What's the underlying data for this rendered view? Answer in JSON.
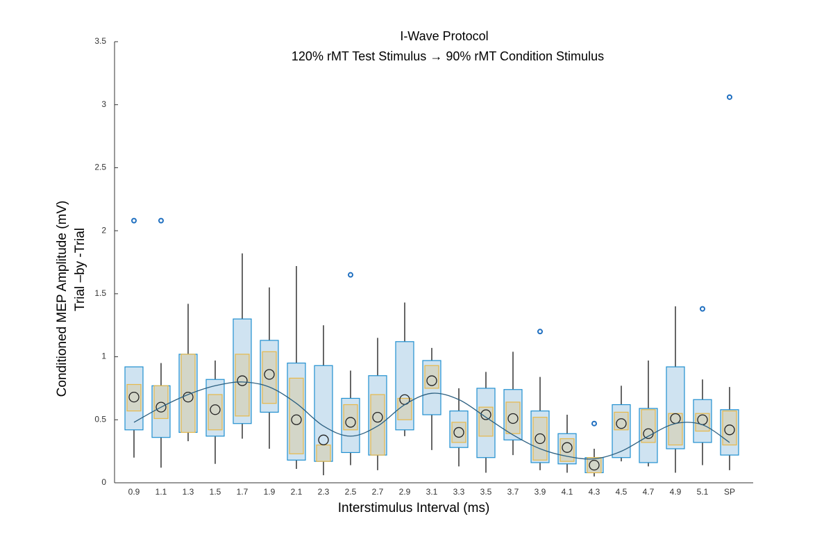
{
  "chart_data": {
    "type": "box",
    "title": [
      "I-Wave Protocol",
      "120% rMT Test Stimulus → 90% rMT Condition Stimulus"
    ],
    "y_label": [
      "Conditioned MEP Amplitude (mV)",
      "Trial –by -Trial"
    ],
    "x_label": "Interstimulus Interval (ms)",
    "categories": [
      "0.9",
      "1.1",
      "1.3",
      "1.5",
      "1.7",
      "1.9",
      "2.1",
      "2.3",
      "2.5",
      "2.7",
      "2.9",
      "3.1",
      "3.3",
      "3.5",
      "3.7",
      "3.9",
      "4.1",
      "4.3",
      "4.5",
      "4.7",
      "4.9",
      "5.1",
      "SP"
    ],
    "ylim": [
      0,
      3.5
    ],
    "yticks": [
      0,
      0.5,
      1,
      1.5,
      2,
      2.5,
      3,
      3.5
    ],
    "box_color": "#1f8fd0",
    "box_fill": "#cfe3f1",
    "inner_color": "#e6b84a",
    "inner_fill": "#d3d6c8",
    "whisker_color": "#333333",
    "mean_color": "#222222",
    "outlier_color": "#1f6fc0",
    "fit_color": "#2b5f80",
    "boxes": [
      {
        "q1": 0.42,
        "q3": 0.92,
        "inner_q1": 0.57,
        "inner_q3": 0.78,
        "whisker_low": 0.2,
        "whisker_high": 0.92,
        "mean": 0.68,
        "outliers": [
          2.08
        ]
      },
      {
        "q1": 0.36,
        "q3": 0.77,
        "inner_q1": 0.51,
        "inner_q3": 0.77,
        "whisker_low": 0.12,
        "whisker_high": 0.95,
        "mean": 0.6,
        "outliers": [
          2.08
        ]
      },
      {
        "q1": 0.4,
        "q3": 1.02,
        "inner_q1": 0.4,
        "inner_q3": 1.02,
        "whisker_low": 0.33,
        "whisker_high": 1.42,
        "mean": 0.68,
        "outliers": []
      },
      {
        "q1": 0.37,
        "q3": 0.82,
        "inner_q1": 0.42,
        "inner_q3": 0.7,
        "whisker_low": 0.15,
        "whisker_high": 0.97,
        "mean": 0.58,
        "outliers": []
      },
      {
        "q1": 0.47,
        "q3": 1.3,
        "inner_q1": 0.53,
        "inner_q3": 1.02,
        "whisker_low": 0.35,
        "whisker_high": 1.82,
        "mean": 0.81,
        "outliers": []
      },
      {
        "q1": 0.56,
        "q3": 1.13,
        "inner_q1": 0.63,
        "inner_q3": 1.04,
        "whisker_low": 0.27,
        "whisker_high": 1.55,
        "mean": 0.86,
        "outliers": []
      },
      {
        "q1": 0.18,
        "q3": 0.95,
        "inner_q1": 0.23,
        "inner_q3": 0.83,
        "whisker_low": 0.11,
        "whisker_high": 1.72,
        "mean": 0.5,
        "outliers": []
      },
      {
        "q1": 0.17,
        "q3": 0.93,
        "inner_q1": 0.17,
        "inner_q3": 0.3,
        "whisker_low": 0.06,
        "whisker_high": 1.25,
        "mean": 0.34,
        "outliers": []
      },
      {
        "q1": 0.24,
        "q3": 0.67,
        "inner_q1": 0.42,
        "inner_q3": 0.62,
        "whisker_low": 0.14,
        "whisker_high": 0.89,
        "mean": 0.48,
        "outliers": [
          1.65
        ]
      },
      {
        "q1": 0.22,
        "q3": 0.85,
        "inner_q1": 0.22,
        "inner_q3": 0.7,
        "whisker_low": 0.1,
        "whisker_high": 1.15,
        "mean": 0.52,
        "outliers": []
      },
      {
        "q1": 0.42,
        "q3": 1.12,
        "inner_q1": 0.5,
        "inner_q3": 0.67,
        "whisker_low": 0.37,
        "whisker_high": 1.43,
        "mean": 0.66,
        "outliers": []
      },
      {
        "q1": 0.54,
        "q3": 0.97,
        "inner_q1": 0.75,
        "inner_q3": 0.93,
        "whisker_low": 0.26,
        "whisker_high": 1.07,
        "mean": 0.81,
        "outliers": []
      },
      {
        "q1": 0.28,
        "q3": 0.57,
        "inner_q1": 0.32,
        "inner_q3": 0.48,
        "whisker_low": 0.13,
        "whisker_high": 0.75,
        "mean": 0.4,
        "outliers": []
      },
      {
        "q1": 0.2,
        "q3": 0.75,
        "inner_q1": 0.37,
        "inner_q3": 0.6,
        "whisker_low": 0.08,
        "whisker_high": 0.88,
        "mean": 0.54,
        "outliers": []
      },
      {
        "q1": 0.34,
        "q3": 0.74,
        "inner_q1": 0.39,
        "inner_q3": 0.64,
        "whisker_low": 0.22,
        "whisker_high": 1.04,
        "mean": 0.51,
        "outliers": []
      },
      {
        "q1": 0.16,
        "q3": 0.57,
        "inner_q1": 0.18,
        "inner_q3": 0.52,
        "whisker_low": 0.1,
        "whisker_high": 0.84,
        "mean": 0.35,
        "outliers": [
          1.2
        ]
      },
      {
        "q1": 0.15,
        "q3": 0.39,
        "inner_q1": 0.17,
        "inner_q3": 0.35,
        "whisker_low": 0.08,
        "whisker_high": 0.54,
        "mean": 0.28,
        "outliers": []
      },
      {
        "q1": 0.08,
        "q3": 0.2,
        "inner_q1": 0.08,
        "inner_q3": 0.2,
        "whisker_low": 0.05,
        "whisker_high": 0.27,
        "mean": 0.14,
        "outliers": [
          0.47
        ]
      },
      {
        "q1": 0.2,
        "q3": 0.62,
        "inner_q1": 0.42,
        "inner_q3": 0.56,
        "whisker_low": 0.17,
        "whisker_high": 0.77,
        "mean": 0.47,
        "outliers": []
      },
      {
        "q1": 0.16,
        "q3": 0.59,
        "inner_q1": 0.32,
        "inner_q3": 0.58,
        "whisker_low": 0.13,
        "whisker_high": 0.97,
        "mean": 0.39,
        "outliers": []
      },
      {
        "q1": 0.27,
        "q3": 0.92,
        "inner_q1": 0.3,
        "inner_q3": 0.55,
        "whisker_low": 0.08,
        "whisker_high": 1.4,
        "mean": 0.51,
        "outliers": []
      },
      {
        "q1": 0.32,
        "q3": 0.66,
        "inner_q1": 0.41,
        "inner_q3": 0.55,
        "whisker_low": 0.14,
        "whisker_high": 0.82,
        "mean": 0.5,
        "outliers": [
          1.38
        ]
      },
      {
        "q1": 0.22,
        "q3": 0.58,
        "inner_q1": 0.3,
        "inner_q3": 0.57,
        "whisker_low": 0.1,
        "whisker_high": 0.76,
        "mean": 0.42,
        "outliers": [
          3.06
        ]
      }
    ],
    "fit": [
      0.48,
      0.6,
      0.7,
      0.77,
      0.8,
      0.76,
      0.63,
      0.45,
      0.37,
      0.45,
      0.62,
      0.71,
      0.66,
      0.52,
      0.38,
      0.27,
      0.21,
      0.19,
      0.25,
      0.37,
      0.47,
      0.46,
      0.32
    ]
  }
}
